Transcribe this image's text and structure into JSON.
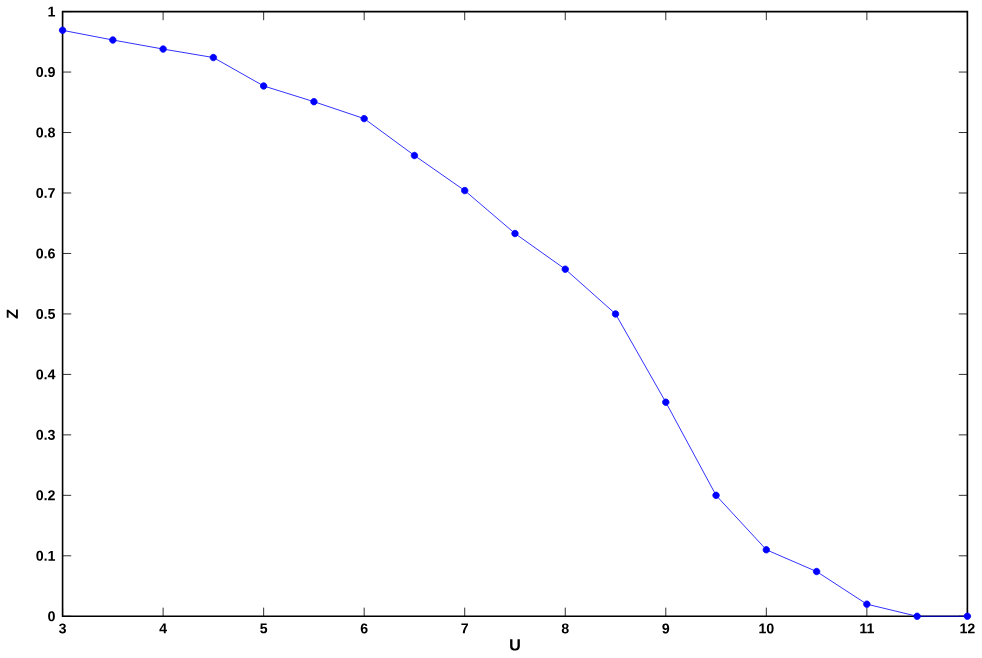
{
  "chart_data": {
    "type": "line",
    "xlabel": "U",
    "ylabel": "Z",
    "x": [
      3,
      3.5,
      4,
      4.5,
      5,
      5.5,
      6,
      6.5,
      7,
      7.5,
      8,
      8.5,
      9,
      9.5,
      10,
      10.5,
      11,
      11.5,
      12
    ],
    "series": [
      {
        "color": "#0000ff",
        "values": [
          0.969,
          0.953,
          0.938,
          0.924,
          0.877,
          0.851,
          0.823,
          0.762,
          0.704,
          0.633,
          0.574,
          0.5,
          0.354,
          0.2,
          0.11,
          0.074,
          0.02,
          0,
          0
        ]
      }
    ],
    "xlim": [
      3,
      12
    ],
    "ylim": [
      0,
      1
    ],
    "xticks": [
      3,
      4,
      5,
      6,
      7,
      8,
      9,
      10,
      11,
      12
    ],
    "yticks": [
      0,
      0.1,
      0.2,
      0.3,
      0.4,
      0.5,
      0.6,
      0.7,
      0.8,
      0.9,
      1
    ],
    "marker": "circle",
    "line_style": "solid",
    "grid": false
  }
}
